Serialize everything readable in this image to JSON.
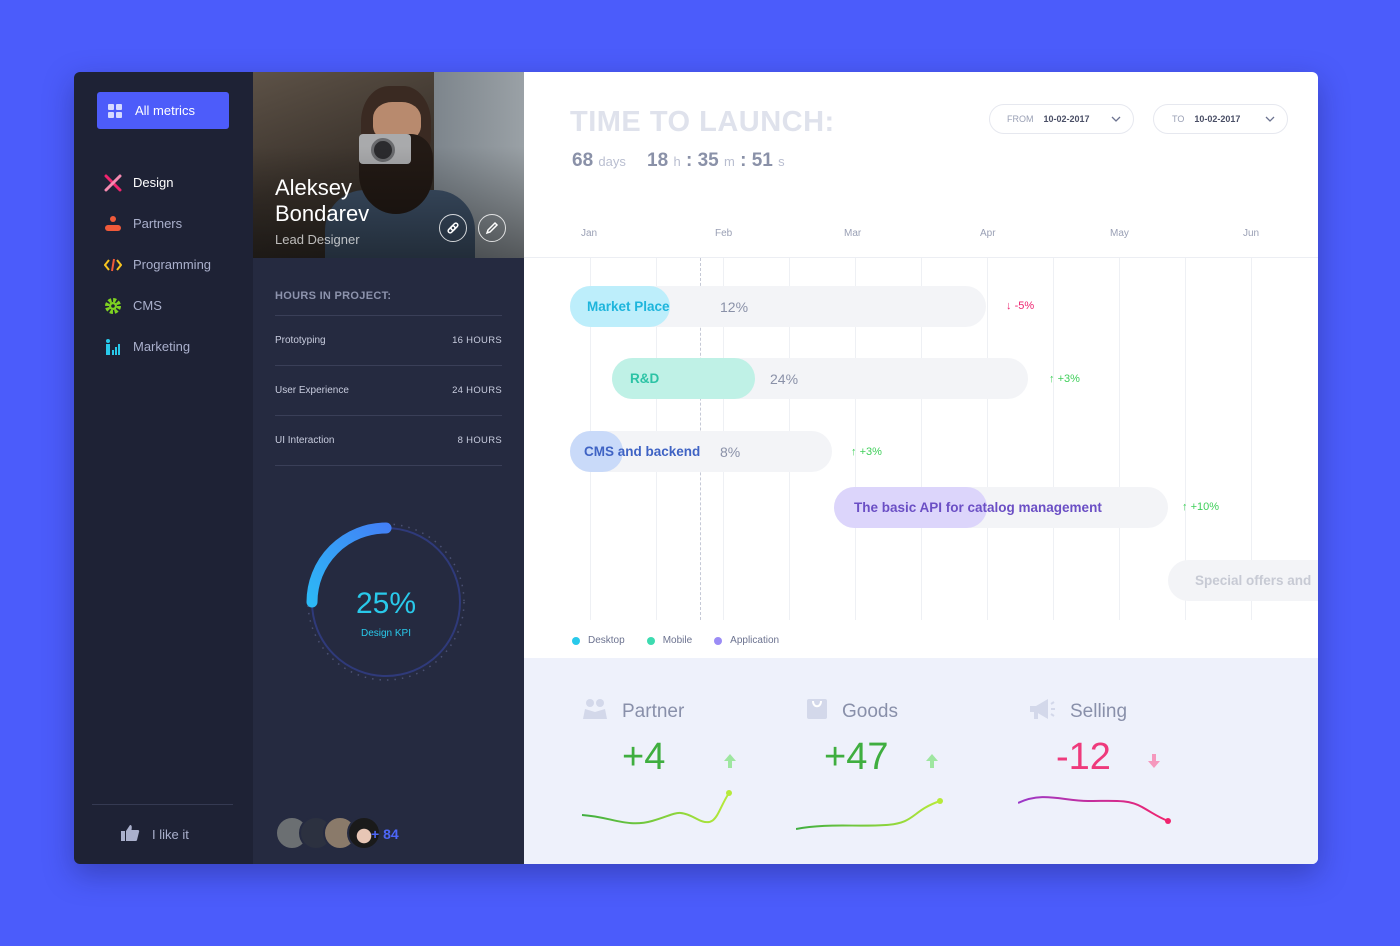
{
  "sidebar": {
    "all_metrics": "All metrics",
    "items": [
      {
        "label": "Design",
        "icon": "design-tools-icon",
        "color": "#f0246e"
      },
      {
        "label": "Partners",
        "icon": "partners-icon",
        "color": "#f05a3a"
      },
      {
        "label": "Programming",
        "icon": "code-icon",
        "color": "#f7c41f"
      },
      {
        "label": "CMS",
        "icon": "gear-icon",
        "color": "#7ed321"
      },
      {
        "label": "Marketing",
        "icon": "marketing-icon",
        "color": "#29c9ea"
      }
    ],
    "like": "I like it"
  },
  "profile": {
    "first_name": "Aleksey",
    "last_name": "Bondarev",
    "role": "Lead Designer",
    "hours_title": "HOURS IN PROJECT:",
    "hours": [
      {
        "label": "Prototyping",
        "value": "16 HOURS"
      },
      {
        "label": "User Experience",
        "value": "24 HOURS"
      },
      {
        "label": "UI Interaction",
        "value": "8 HOURS"
      }
    ],
    "kpi_value": "25%",
    "kpi_label": "Design KPI",
    "kpi_fraction": 0.25,
    "members_more": "+ 84"
  },
  "main": {
    "title": "TIME TO LAUNCH:",
    "countdown": {
      "days": "68",
      "days_unit": "days",
      "hours": "18",
      "hours_unit": "h",
      "minutes": "35",
      "minutes_unit": "m",
      "seconds": "51",
      "seconds_unit": "s"
    },
    "from_label": "FROM",
    "from_date": "10-02-2017",
    "to_label": "TO",
    "to_date": "10-02-2017",
    "months": [
      "Jan",
      "Feb",
      "Mar",
      "Apr",
      "May",
      "Jun"
    ],
    "tasks": [
      {
        "name": "Market Place",
        "percent": "12%",
        "delta": "-5%",
        "direction": "down",
        "color": "#1eb5dc",
        "fill": "#bdeefb"
      },
      {
        "name": "R&D",
        "percent": "24%",
        "delta": "+3%",
        "direction": "up",
        "color": "#2cc3a5",
        "fill": "#bff1e6"
      },
      {
        "name": "CMS and backend",
        "percent": "8%",
        "delta": "+3%",
        "direction": "up",
        "color": "#3f63c4",
        "fill": "#c9daf9"
      },
      {
        "name": "The basic API for catalog management",
        "percent": "",
        "delta": "+10%",
        "direction": "up",
        "color": "#6b4fc5",
        "fill": "#dcd5fb"
      },
      {
        "name": "Special offers and",
        "percent": "",
        "delta": "",
        "direction": "",
        "color": "#c7cad4",
        "fill": "#f3f4f7"
      }
    ],
    "legend": [
      {
        "label": "Desktop",
        "color": "#29c9ea"
      },
      {
        "label": "Mobile",
        "color": "#3ddbb0"
      },
      {
        "label": "Application",
        "color": "#9b8cf5"
      }
    ],
    "stats": [
      {
        "label": "Partner",
        "value": "+4",
        "color": "#3fae3f",
        "direction": "up"
      },
      {
        "label": "Goods",
        "value": "+47",
        "color": "#3fae3f",
        "direction": "up"
      },
      {
        "label": "Selling",
        "value": "-12",
        "color": "#ee3a7c",
        "direction": "down"
      }
    ]
  },
  "colors": {
    "accent": "#4d5cfa",
    "up": "#3fcf5a",
    "down": "#ee2470"
  }
}
